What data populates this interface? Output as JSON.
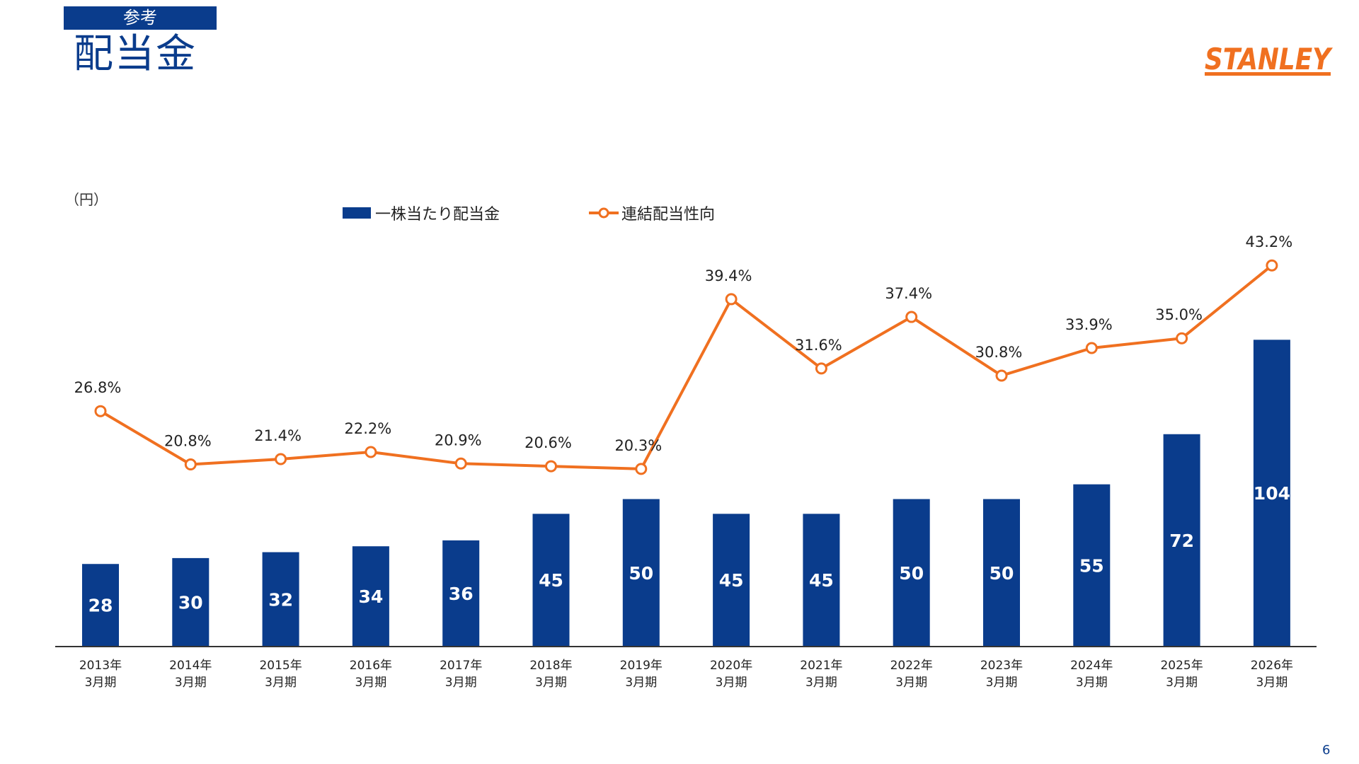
{
  "header": {
    "tag": "参考",
    "title": "配当金"
  },
  "logo": {
    "text": "STANLEY",
    "color": "#f07020"
  },
  "page_number": "6",
  "colors": {
    "bar": "#0a3c8c",
    "line": "#f07020",
    "axis": "#333333"
  },
  "chart_data": {
    "type": "bar",
    "unit_label": "（円）",
    "categories": [
      [
        "2013年",
        "3月期"
      ],
      [
        "2014年",
        "3月期"
      ],
      [
        "2015年",
        "3月期"
      ],
      [
        "2016年",
        "3月期"
      ],
      [
        "2017年",
        "3月期"
      ],
      [
        "2018年",
        "3月期"
      ],
      [
        "2019年",
        "3月期"
      ],
      [
        "2020年",
        "3月期"
      ],
      [
        "2021年",
        "3月期"
      ],
      [
        "2022年",
        "3月期"
      ],
      [
        "2023年",
        "3月期"
      ],
      [
        "2024年",
        "3月期"
      ],
      [
        "2025年",
        "3月期"
      ],
      [
        "2026年",
        "3月期"
      ]
    ],
    "series": [
      {
        "name": "一株当たり配当金",
        "type": "bar",
        "values": [
          28,
          30,
          32,
          34,
          36,
          45,
          50,
          45,
          45,
          50,
          50,
          55,
          72,
          104
        ]
      },
      {
        "name": "連結配当性向",
        "type": "line",
        "values": [
          26.8,
          20.8,
          21.4,
          22.2,
          20.9,
          20.6,
          20.3,
          39.4,
          31.6,
          37.4,
          30.8,
          33.9,
          35.0,
          43.2
        ],
        "labels": [
          "26.8%",
          "20.8%",
          "21.4%",
          "22.2%",
          "20.9%",
          "20.6%",
          "20.3%",
          "39.4%",
          "31.6%",
          "37.4%",
          "30.8%",
          "33.9%",
          "35.0%",
          "43.2%"
        ]
      }
    ],
    "legend_position": "top",
    "grid": false
  }
}
